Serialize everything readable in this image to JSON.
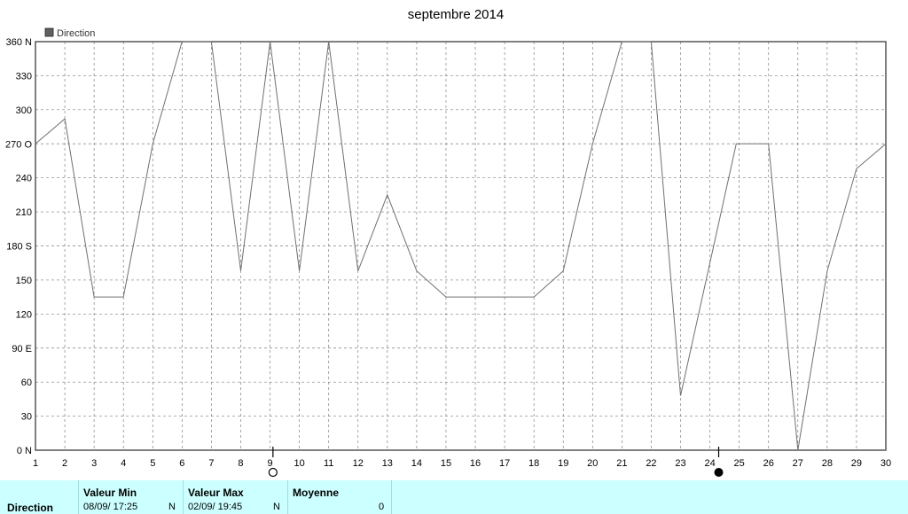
{
  "chart_data": {
    "type": "line",
    "title": "septembre 2014",
    "legend": {
      "label": "Direction",
      "position": "top-left"
    },
    "x": [
      1,
      2,
      3,
      4,
      5,
      6,
      7,
      8,
      9,
      10,
      11,
      12,
      13,
      14,
      15,
      16,
      17,
      18,
      19,
      20,
      21,
      22,
      23,
      24,
      25,
      26,
      27,
      28,
      29,
      30
    ],
    "xlim": [
      1,
      30
    ],
    "ylim": [
      0,
      360
    ],
    "yticks": [
      0,
      30,
      60,
      90,
      120,
      150,
      180,
      210,
      240,
      270,
      300,
      330,
      360
    ],
    "ytick_labels": [
      "0 N",
      "30",
      "60",
      "90 E",
      "120",
      "150",
      "180 S",
      "210",
      "240",
      "270 O",
      "300",
      "330",
      "360 N"
    ],
    "grid": true,
    "series": [
      {
        "name": "Direction",
        "color": "#707070",
        "points": [
          [
            1,
            270
          ],
          [
            2,
            292
          ],
          [
            3,
            135
          ],
          [
            4,
            135
          ],
          [
            5,
            270
          ],
          [
            6,
            360
          ],
          [
            7,
            360
          ],
          [
            8,
            158
          ],
          [
            9,
            360
          ],
          [
            10,
            158
          ],
          [
            11,
            360
          ],
          [
            12,
            158
          ],
          [
            13,
            225
          ],
          [
            14,
            158
          ],
          [
            15,
            135
          ],
          [
            16,
            135
          ],
          [
            17,
            135
          ],
          [
            18,
            135
          ],
          [
            19,
            158
          ],
          [
            20,
            270
          ],
          [
            21,
            360
          ],
          [
            22,
            360
          ],
          [
            23,
            48
          ],
          [
            24.9,
            270
          ],
          [
            25,
            270
          ],
          [
            26,
            270
          ],
          [
            27,
            0
          ],
          [
            28,
            158
          ],
          [
            29,
            248
          ],
          [
            30,
            270
          ]
        ]
      }
    ],
    "moon_phases": [
      {
        "x": 9.1,
        "phase": "full-moon"
      },
      {
        "x": 24.3,
        "phase": "new-moon"
      }
    ]
  },
  "stats": {
    "row_label": "Direction",
    "min": {
      "header": "Valeur Min",
      "value": "08/09/  17:25",
      "unit": "N"
    },
    "max": {
      "header": "Valeur Max",
      "value": "02/09/  19:45",
      "unit": "N"
    },
    "mean": {
      "header": "Moyenne",
      "value": "0"
    }
  },
  "colors": {
    "axis": "#555555",
    "grid": "#808080",
    "stats_bg": "#ccffff"
  }
}
